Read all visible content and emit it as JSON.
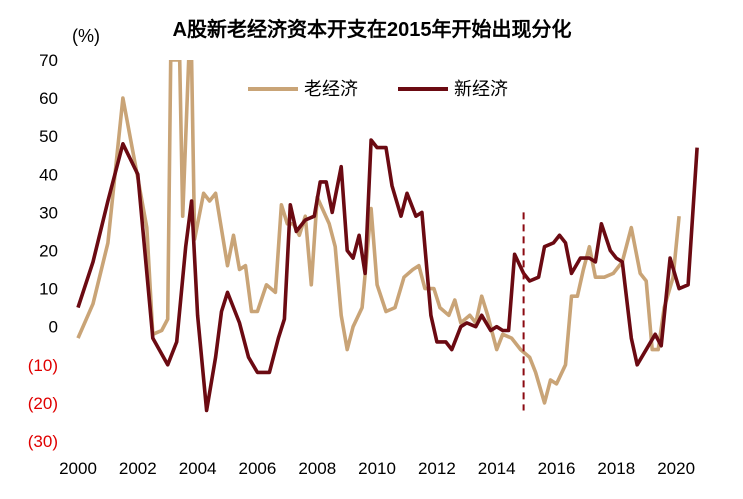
{
  "chart_data": {
    "type": "line",
    "title": "A股新老经济资本开支在2015年开始出现分化",
    "ylabel": "(%)",
    "xlabel": "",
    "xlim": [
      2000,
      2021.3
    ],
    "ylim": [
      -30,
      70
    ],
    "y_ticks": [
      70,
      60,
      50,
      40,
      30,
      20,
      10,
      0,
      -10,
      -20,
      -30
    ],
    "y_tick_labels": [
      "70",
      "60",
      "50",
      "40",
      "30",
      "20",
      "10",
      "0",
      "(10)",
      "(20)",
      "(30)"
    ],
    "x_ticks": [
      2000,
      2002,
      2004,
      2006,
      2008,
      2010,
      2012,
      2014,
      2016,
      2018,
      2020
    ],
    "x_tick_labels": [
      "2000",
      "2002",
      "2004",
      "2006",
      "2008",
      "2010",
      "2012",
      "2014",
      "2016",
      "2018",
      "2020"
    ],
    "grid": false,
    "legend_position": "top-center",
    "colors": {
      "old": "#c9a477",
      "new": "#6b0a12",
      "divider": "#8b0a12",
      "negative_tick": "#e00000"
    },
    "annotations": [
      {
        "type": "vertical-dashed-line",
        "x": 2014.9,
        "y_from": -22,
        "y_to": 30
      }
    ],
    "series": [
      {
        "name": "老经济",
        "color": "#c9a477",
        "points": [
          [
            2000.0,
            -3
          ],
          [
            2000.5,
            6
          ],
          [
            2001.0,
            22
          ],
          [
            2001.5,
            60
          ],
          [
            2002.0,
            39
          ],
          [
            2002.3,
            26
          ],
          [
            2002.5,
            -2
          ],
          [
            2002.8,
            -1
          ],
          [
            2003.0,
            2
          ],
          [
            2003.1,
            70
          ],
          [
            2003.4,
            70
          ],
          [
            2003.5,
            29
          ],
          [
            2003.7,
            70
          ],
          [
            2003.8,
            70
          ],
          [
            2003.9,
            23
          ],
          [
            2004.2,
            35
          ],
          [
            2004.4,
            33
          ],
          [
            2004.6,
            35
          ],
          [
            2005.0,
            16
          ],
          [
            2005.2,
            24
          ],
          [
            2005.4,
            15
          ],
          [
            2005.6,
            16
          ],
          [
            2005.8,
            4
          ],
          [
            2006.0,
            4
          ],
          [
            2006.3,
            11
          ],
          [
            2006.6,
            9
          ],
          [
            2006.8,
            32
          ],
          [
            2007.0,
            27
          ],
          [
            2007.2,
            27
          ],
          [
            2007.4,
            24
          ],
          [
            2007.6,
            29
          ],
          [
            2007.8,
            11
          ],
          [
            2008.0,
            34
          ],
          [
            2008.4,
            27
          ],
          [
            2008.6,
            21
          ],
          [
            2008.8,
            3
          ],
          [
            2009.0,
            -6
          ],
          [
            2009.2,
            0
          ],
          [
            2009.5,
            5
          ],
          [
            2009.8,
            31
          ],
          [
            2010.0,
            11
          ],
          [
            2010.3,
            4
          ],
          [
            2010.6,
            5
          ],
          [
            2010.9,
            13
          ],
          [
            2011.2,
            15
          ],
          [
            2011.4,
            16
          ],
          [
            2011.6,
            10
          ],
          [
            2011.9,
            10
          ],
          [
            2012.1,
            5
          ],
          [
            2012.4,
            3
          ],
          [
            2012.6,
            7
          ],
          [
            2012.8,
            1
          ],
          [
            2013.1,
            3
          ],
          [
            2013.3,
            1
          ],
          [
            2013.5,
            8
          ],
          [
            2013.7,
            3
          ],
          [
            2014.0,
            -6
          ],
          [
            2014.2,
            -2
          ],
          [
            2014.5,
            -3
          ],
          [
            2014.8,
            -6
          ],
          [
            2015.1,
            -8
          ],
          [
            2015.3,
            -12
          ],
          [
            2015.6,
            -20
          ],
          [
            2015.8,
            -14
          ],
          [
            2016.0,
            -15
          ],
          [
            2016.3,
            -10
          ],
          [
            2016.5,
            8
          ],
          [
            2016.7,
            8
          ],
          [
            2016.9,
            15
          ],
          [
            2017.1,
            21
          ],
          [
            2017.3,
            13
          ],
          [
            2017.6,
            13
          ],
          [
            2017.9,
            14
          ],
          [
            2018.2,
            17
          ],
          [
            2018.5,
            26
          ],
          [
            2018.8,
            14
          ],
          [
            2019.0,
            12
          ],
          [
            2019.2,
            -6
          ],
          [
            2019.4,
            -6
          ],
          [
            2019.6,
            5
          ],
          [
            2019.9,
            13
          ],
          [
            2020.1,
            29
          ]
        ]
      },
      {
        "name": "新经济",
        "color": "#6b0a12",
        "points": [
          [
            2000.0,
            5
          ],
          [
            2000.5,
            17
          ],
          [
            2001.0,
            33
          ],
          [
            2001.5,
            48
          ],
          [
            2002.0,
            40
          ],
          [
            2002.5,
            -3
          ],
          [
            2003.0,
            -10
          ],
          [
            2003.3,
            -4
          ],
          [
            2003.6,
            21
          ],
          [
            2003.8,
            33
          ],
          [
            2004.0,
            3
          ],
          [
            2004.3,
            -22
          ],
          [
            2004.6,
            -8
          ],
          [
            2004.8,
            4
          ],
          [
            2005.0,
            9
          ],
          [
            2005.4,
            1
          ],
          [
            2005.7,
            -8
          ],
          [
            2006.0,
            -12
          ],
          [
            2006.4,
            -12
          ],
          [
            2006.7,
            -3
          ],
          [
            2006.9,
            2
          ],
          [
            2007.1,
            32
          ],
          [
            2007.3,
            25
          ],
          [
            2007.6,
            28
          ],
          [
            2007.9,
            29
          ],
          [
            2008.1,
            38
          ],
          [
            2008.3,
            38
          ],
          [
            2008.5,
            30
          ],
          [
            2008.8,
            42
          ],
          [
            2009.0,
            20
          ],
          [
            2009.2,
            18
          ],
          [
            2009.4,
            24
          ],
          [
            2009.6,
            14
          ],
          [
            2009.8,
            49
          ],
          [
            2010.0,
            47
          ],
          [
            2010.3,
            47
          ],
          [
            2010.5,
            37
          ],
          [
            2010.8,
            29
          ],
          [
            2011.0,
            35
          ],
          [
            2011.3,
            29
          ],
          [
            2011.5,
            30
          ],
          [
            2011.8,
            3
          ],
          [
            2012.0,
            -4
          ],
          [
            2012.3,
            -4
          ],
          [
            2012.5,
            -6
          ],
          [
            2012.8,
            0
          ],
          [
            2013.0,
            1
          ],
          [
            2013.3,
            0
          ],
          [
            2013.5,
            3
          ],
          [
            2013.8,
            -1
          ],
          [
            2014.0,
            0
          ],
          [
            2014.2,
            -1
          ],
          [
            2014.4,
            -1
          ],
          [
            2014.6,
            19
          ],
          [
            2014.9,
            14
          ],
          [
            2015.1,
            12
          ],
          [
            2015.4,
            13
          ],
          [
            2015.6,
            21
          ],
          [
            2015.9,
            22
          ],
          [
            2016.1,
            24
          ],
          [
            2016.3,
            22
          ],
          [
            2016.5,
            14
          ],
          [
            2016.8,
            18
          ],
          [
            2017.1,
            18
          ],
          [
            2017.3,
            17
          ],
          [
            2017.5,
            27
          ],
          [
            2017.8,
            20
          ],
          [
            2018.0,
            18
          ],
          [
            2018.2,
            17
          ],
          [
            2018.5,
            -3
          ],
          [
            2018.7,
            -10
          ],
          [
            2019.0,
            -6
          ],
          [
            2019.3,
            -2
          ],
          [
            2019.5,
            -5
          ],
          [
            2019.8,
            18
          ],
          [
            2020.1,
            10
          ],
          [
            2020.4,
            11
          ],
          [
            2020.7,
            47
          ]
        ]
      }
    ]
  }
}
